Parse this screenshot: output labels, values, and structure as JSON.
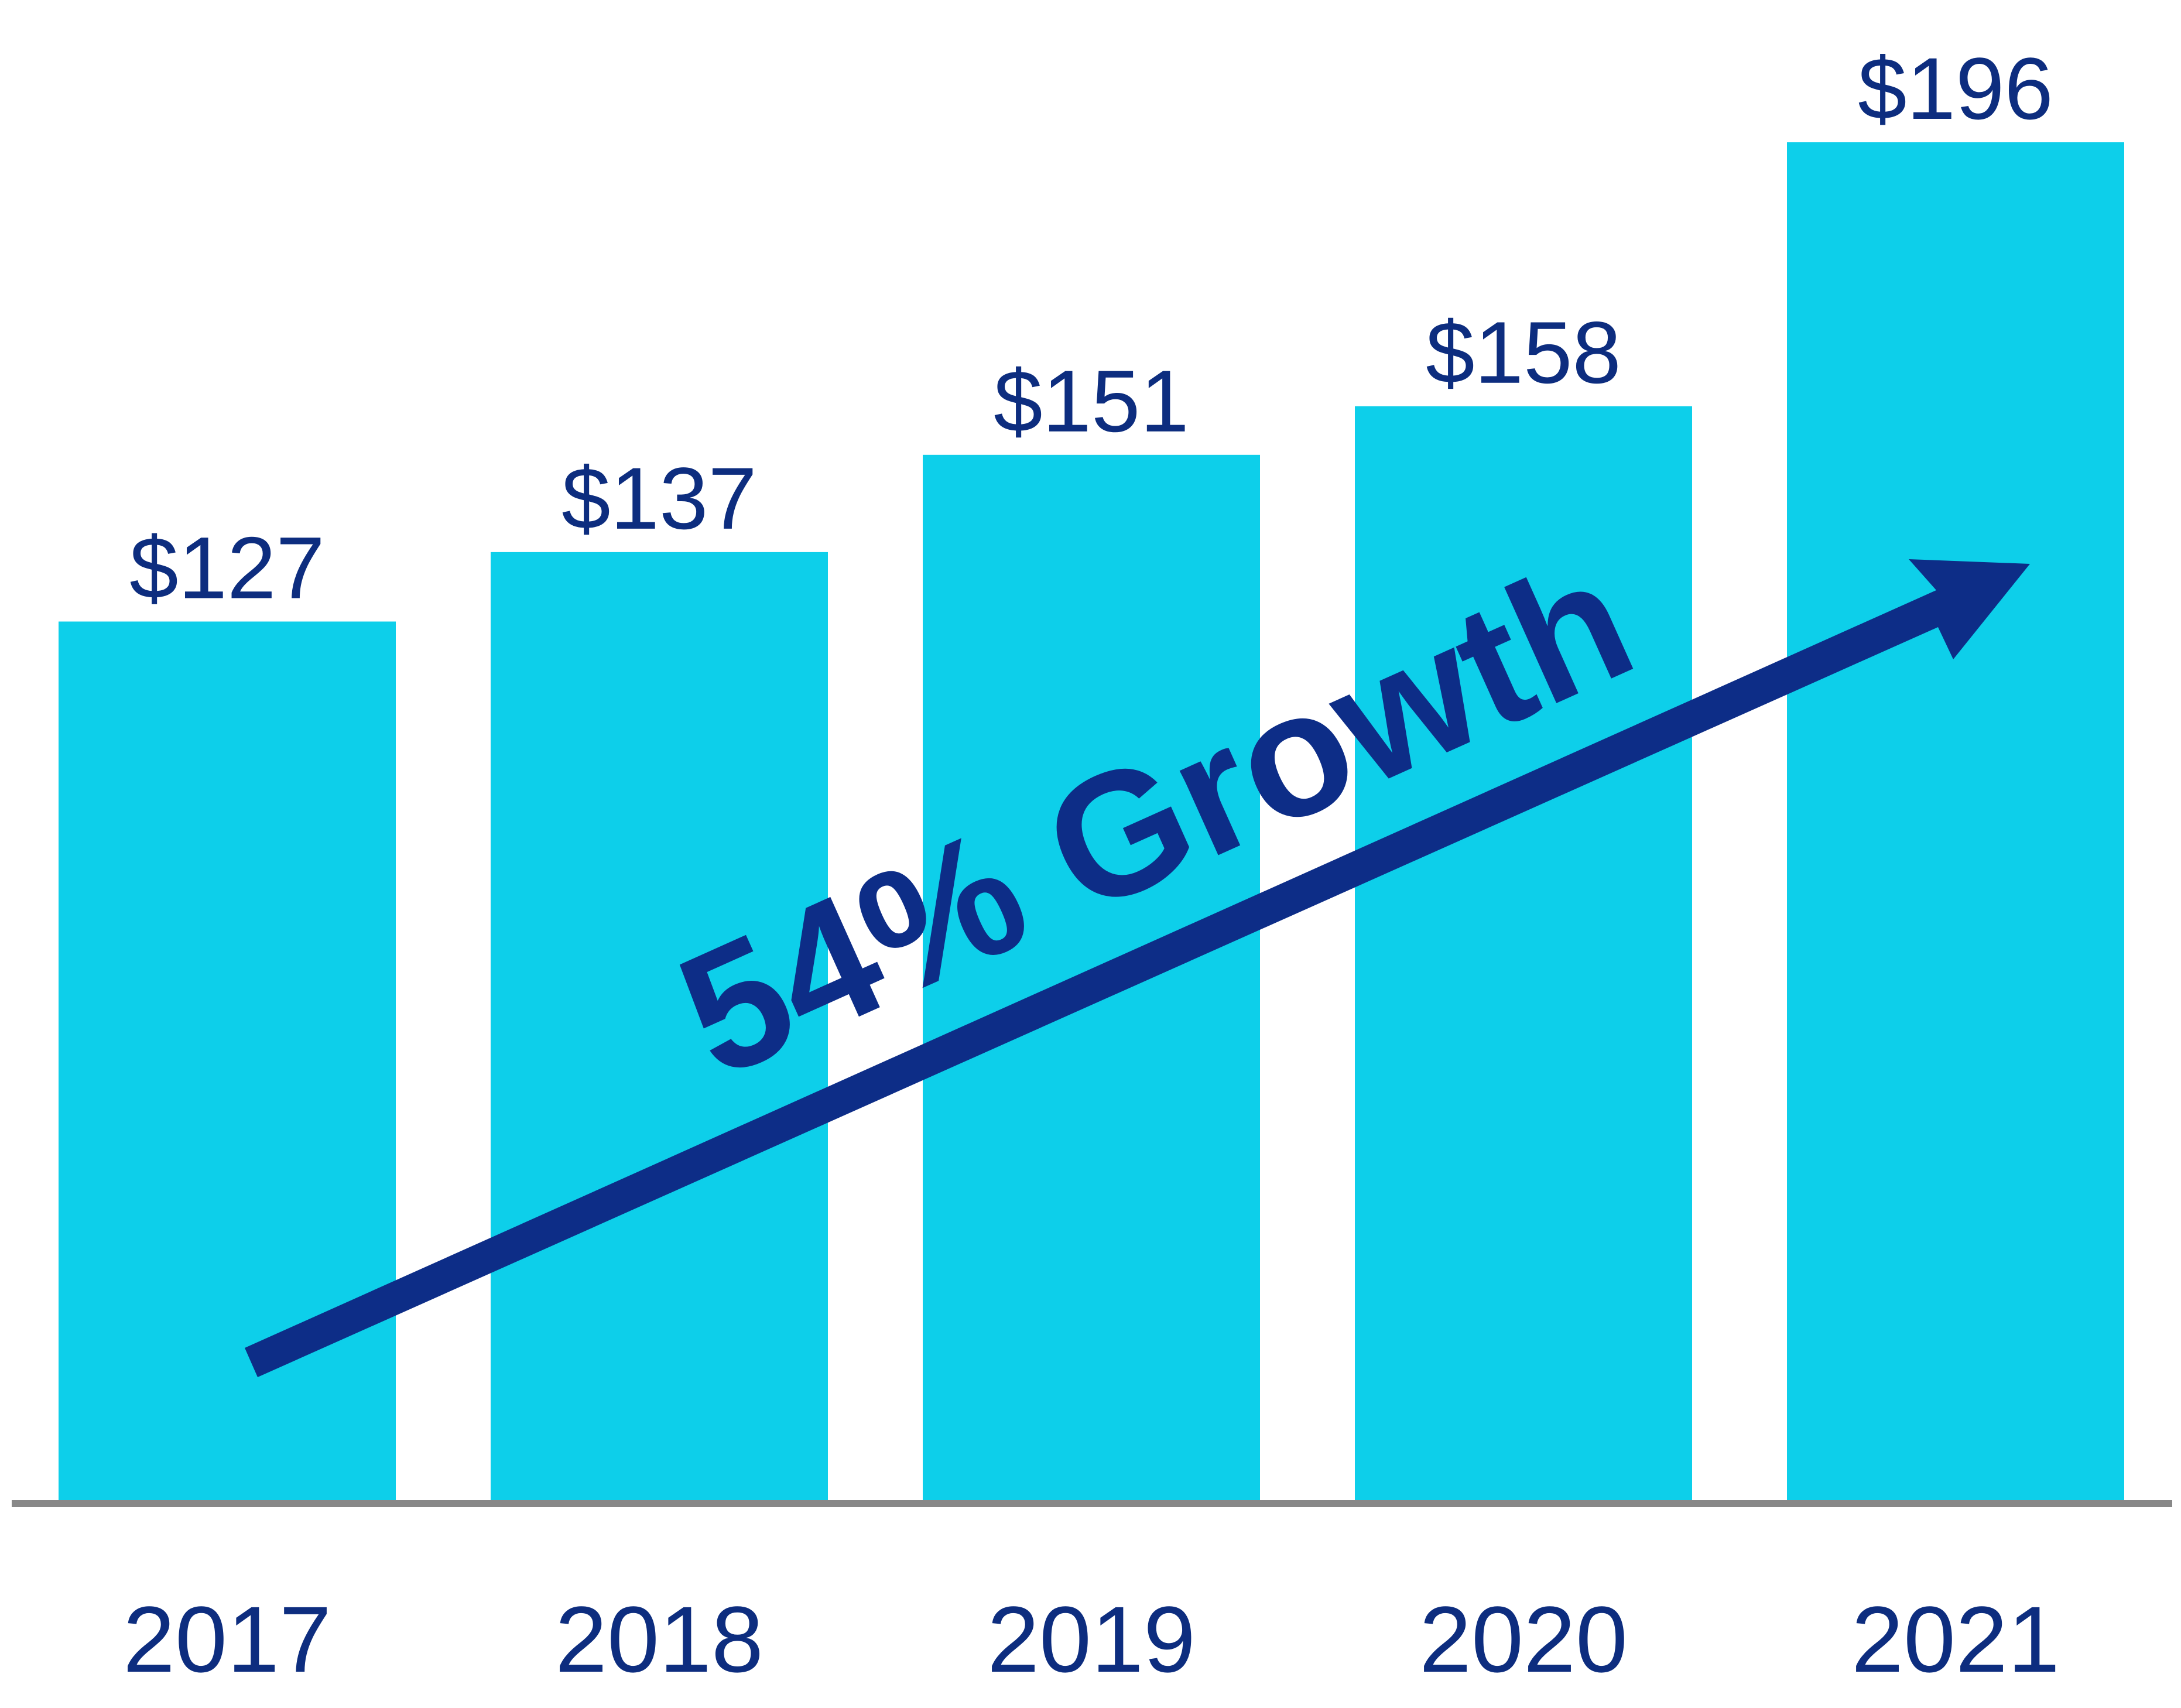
{
  "chart_data": {
    "type": "bar",
    "title": "",
    "xlabel": "",
    "ylabel": "",
    "categories": [
      "2017",
      "2018",
      "2019",
      "2020",
      "2021"
    ],
    "values": [
      127,
      137,
      151,
      158,
      196
    ],
    "value_labels": [
      "$127",
      "$137",
      "$151",
      "$158",
      "$196"
    ],
    "ylim": [
      0,
      196
    ],
    "grid": false,
    "legend": null,
    "annotation": {
      "text": "54% Growth",
      "type": "trend-arrow",
      "from_category": "2017",
      "to_category": "2021"
    },
    "colors": {
      "bar": "#0dcfea",
      "label": "#0d2d7f",
      "arrow": "#0d2d87",
      "baseline": "#888888"
    }
  }
}
